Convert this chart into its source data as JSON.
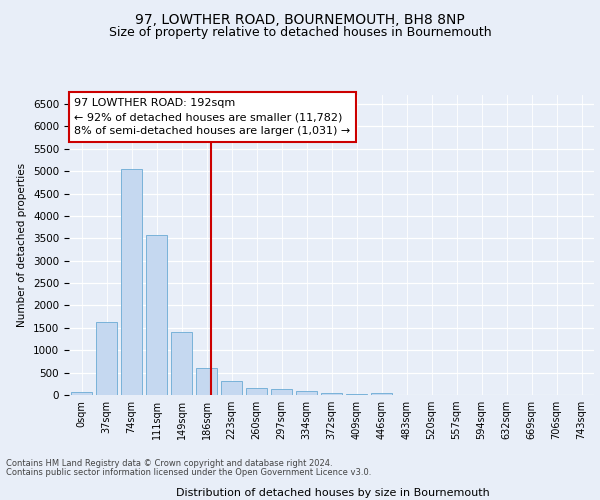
{
  "title": "97, LOWTHER ROAD, BOURNEMOUTH, BH8 8NP",
  "subtitle": "Size of property relative to detached houses in Bournemouth",
  "xlabel": "Distribution of detached houses by size in Bournemouth",
  "ylabel": "Number of detached properties",
  "footer_line1": "Contains HM Land Registry data © Crown copyright and database right 2024.",
  "footer_line2": "Contains public sector information licensed under the Open Government Licence v3.0.",
  "bar_labels": [
    "0sqm",
    "37sqm",
    "74sqm",
    "111sqm",
    "149sqm",
    "186sqm",
    "223sqm",
    "260sqm",
    "297sqm",
    "334sqm",
    "372sqm",
    "409sqm",
    "446sqm",
    "483sqm",
    "520sqm",
    "557sqm",
    "594sqm",
    "632sqm",
    "669sqm",
    "706sqm",
    "743sqm"
  ],
  "bar_values": [
    75,
    1625,
    5050,
    3575,
    1400,
    600,
    310,
    165,
    130,
    90,
    55,
    25,
    55,
    0,
    0,
    0,
    0,
    0,
    0,
    0,
    0
  ],
  "bar_color": "#c5d8f0",
  "bar_edge_color": "#6aaad4",
  "vline_x": 5.17,
  "vline_color": "#cc0000",
  "annotation_title": "97 LOWTHER ROAD: 192sqm",
  "annotation_line1": "← 92% of detached houses are smaller (11,782)",
  "annotation_line2": "8% of semi-detached houses are larger (1,031) →",
  "annotation_box_color": "#cc0000",
  "annotation_fill": "white",
  "ylim": [
    0,
    6700
  ],
  "yticks": [
    0,
    500,
    1000,
    1500,
    2000,
    2500,
    3000,
    3500,
    4000,
    4500,
    5000,
    5500,
    6000,
    6500
  ],
  "bg_color": "#e8eef8",
  "plot_bg_color": "#e8eef8",
  "grid_color": "white",
  "title_fontsize": 10,
  "subtitle_fontsize": 9
}
